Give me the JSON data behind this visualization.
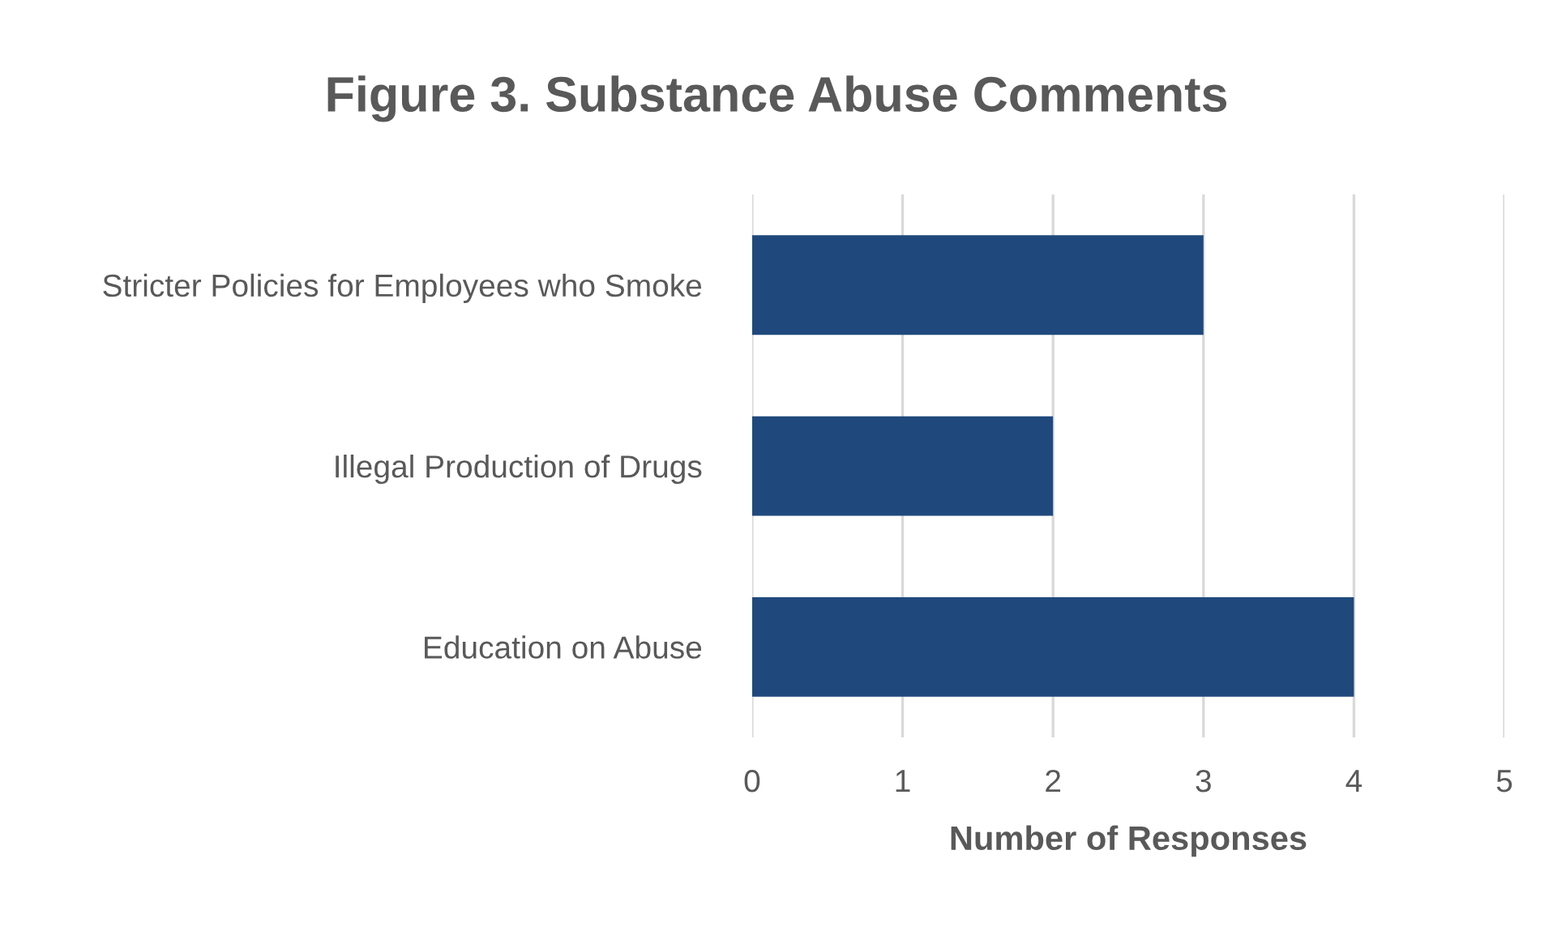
{
  "chart_data": {
    "type": "bar",
    "orientation": "horizontal",
    "title": "Figure 3. Substance Abuse Comments",
    "xlabel": "Number of Responses",
    "categories": [
      "Stricter Policies for Employees who Smoke",
      "Illegal Production of Drugs",
      "Education on Abuse"
    ],
    "values": [
      3,
      2,
      4
    ],
    "color": "#1f497d",
    "xlim": [
      0,
      5
    ],
    "xticks": [
      0,
      1,
      2,
      3,
      4,
      5
    ],
    "grid": "x"
  }
}
